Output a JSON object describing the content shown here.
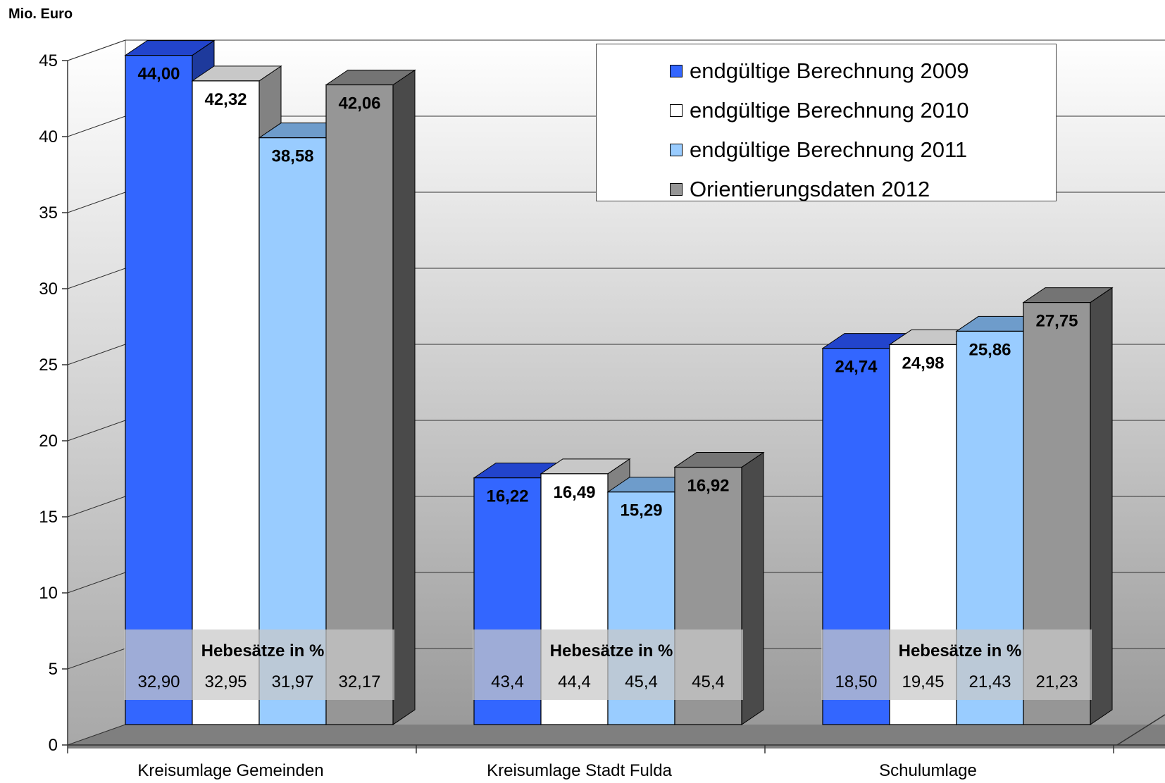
{
  "chart_data": {
    "type": "bar",
    "ylabel": "Mio. Euro",
    "ylim": [
      0,
      45
    ],
    "yticks": [
      0,
      5,
      10,
      15,
      20,
      25,
      30,
      35,
      40,
      45
    ],
    "grid": true,
    "legend_position": "top-right",
    "categories": [
      "Kreisumlage Gemeinden",
      "Kreisumlage Stadt Fulda",
      "Schulumlage"
    ],
    "series": [
      {
        "name": "endgültige Berechnung 2009",
        "color": "#3366FF",
        "values": [
          44.0,
          16.22,
          24.74
        ],
        "labels": [
          "44,00",
          "16,22",
          "24,74"
        ]
      },
      {
        "name": "endgültige Berechnung 2010",
        "color": "#FFFFFF",
        "values": [
          42.32,
          16.49,
          24.98
        ],
        "labels": [
          "42,32",
          "16,49",
          "24,98"
        ]
      },
      {
        "name": "endgültige Berechnung 2011",
        "color": "#99CCFF",
        "values": [
          38.58,
          15.29,
          25.86
        ],
        "labels": [
          "38,58",
          "15,29",
          "25,86"
        ]
      },
      {
        "name": "Orientierungsdaten 2012",
        "color": "#969696",
        "values": [
          42.06,
          16.92,
          27.75
        ],
        "labels": [
          "42,06",
          "16,92",
          "27,75"
        ]
      }
    ],
    "annotations": {
      "hebesaetze_title": "Hebesätze in %",
      "hebesaetze": [
        [
          "32,90",
          "32,95",
          "31,97",
          "32,17"
        ],
        [
          "43,4",
          "44,4",
          "45,4",
          "45,4"
        ],
        [
          "18,50",
          "19,45",
          "21,43",
          "21,23"
        ]
      ]
    }
  }
}
